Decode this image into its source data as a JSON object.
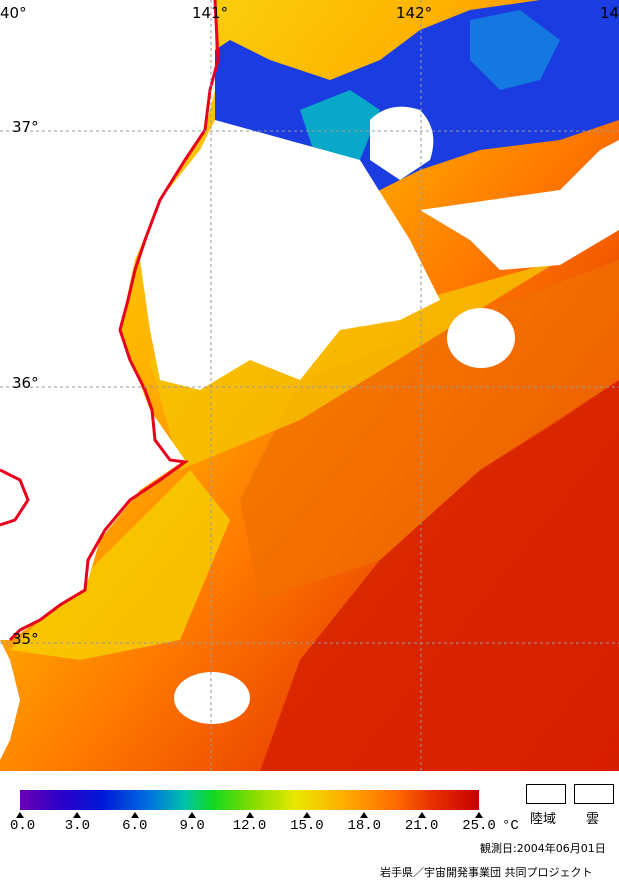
{
  "map": {
    "longitude_labels": [
      "40°",
      "141°",
      "142°",
      "14"
    ],
    "latitude_labels": [
      "37°",
      "36°",
      "35°"
    ],
    "colors": {
      "coastline": "#e8001c",
      "grid": "#9a9a9a",
      "land_cloud": "#ffffff"
    }
  },
  "colorbar": {
    "tick_labels": [
      "0.0",
      "3.0",
      "6.0",
      "9.0",
      "12.0",
      "15.0",
      "18.0",
      "21.0",
      "25.0"
    ],
    "unit": "°C",
    "range": [
      0.0,
      25.0
    ]
  },
  "legend": {
    "land_label": "陸域",
    "cloud_label": "雲"
  },
  "footer": {
    "observation_date": "観測日:2004年06月01日",
    "credit": "岩手県／宇宙開発事業団 共同プロジェクト"
  }
}
